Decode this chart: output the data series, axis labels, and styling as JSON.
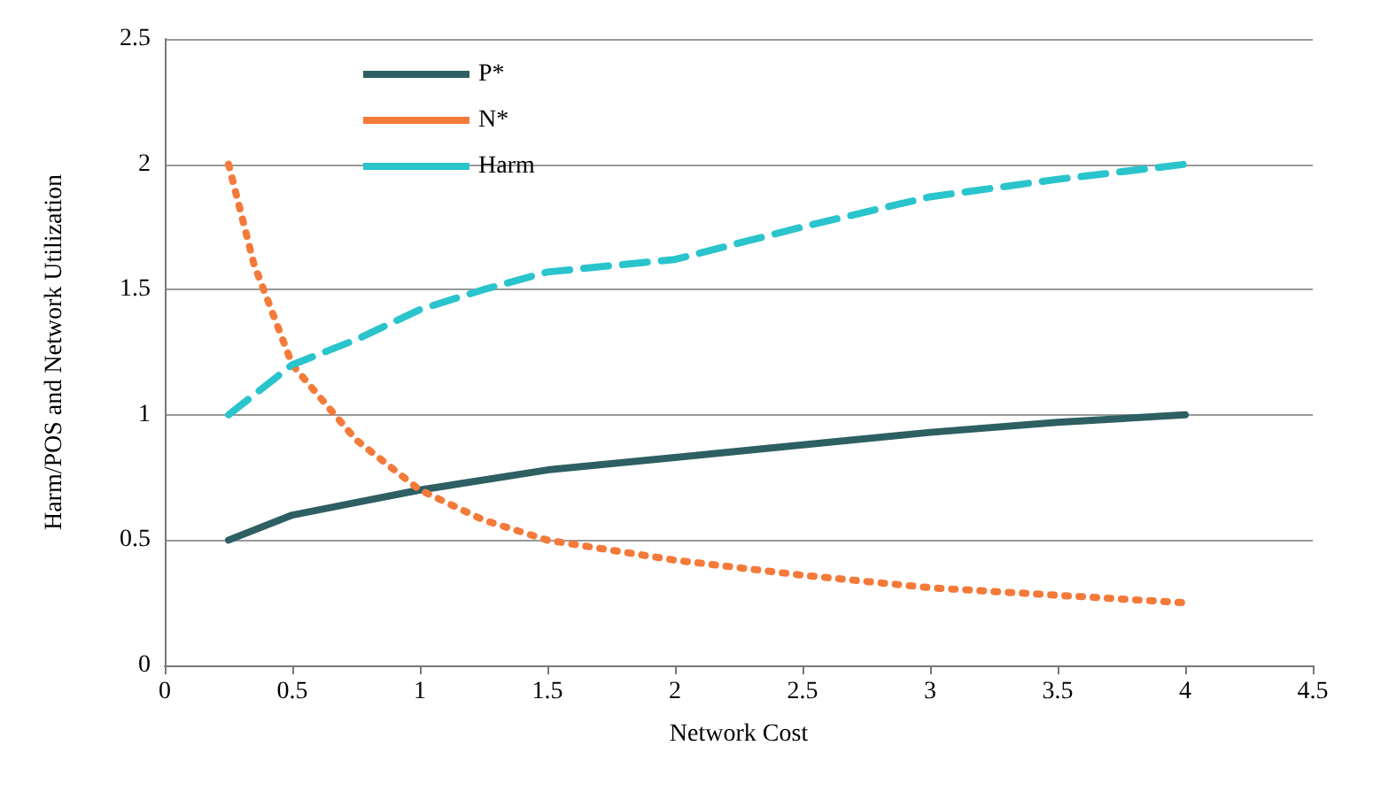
{
  "chart_data": {
    "type": "line",
    "xlabel": "Network Cost",
    "ylabel": "Harm/POS and Network Utilization",
    "xlim": [
      0,
      4.5
    ],
    "xticks": [
      0,
      0.5,
      1,
      1.5,
      2,
      2.5,
      3,
      3.5,
      4,
      4.5
    ],
    "ylim": [
      0,
      2.5
    ],
    "yticks": [
      0,
      0.5,
      1,
      1.5,
      2,
      2.5
    ],
    "grid": "y",
    "legend": "top left",
    "marker": "none",
    "series": [
      {
        "name": "P*",
        "color": "#2d5f63",
        "line_style": "solid",
        "x": [
          0.25,
          0.5,
          0.75,
          1,
          1.5,
          2,
          2.5,
          3,
          3.5,
          4
        ],
        "values": [
          0.5,
          0.6,
          0.65,
          0.7,
          0.78,
          0.83,
          0.88,
          0.93,
          0.97,
          1.0
        ]
      },
      {
        "name": "N*",
        "color": "#f47a3a",
        "line_style": "dotted",
        "x": [
          0.25,
          0.35,
          0.5,
          0.75,
          1,
          1.25,
          1.5,
          2,
          2.5,
          3,
          3.5,
          4
        ],
        "values": [
          2.0,
          1.6,
          1.2,
          0.9,
          0.7,
          0.58,
          0.5,
          0.42,
          0.36,
          0.31,
          0.28,
          0.25
        ]
      },
      {
        "name": "Harm",
        "color": "#29c4cc",
        "line_style": "dashed",
        "x": [
          0.25,
          0.5,
          0.75,
          1,
          1.25,
          1.5,
          2,
          2.5,
          3,
          3.5,
          4
        ],
        "values": [
          1.0,
          1.2,
          1.3,
          1.42,
          1.5,
          1.57,
          1.62,
          1.75,
          1.87,
          1.94,
          2.0
        ]
      }
    ]
  }
}
